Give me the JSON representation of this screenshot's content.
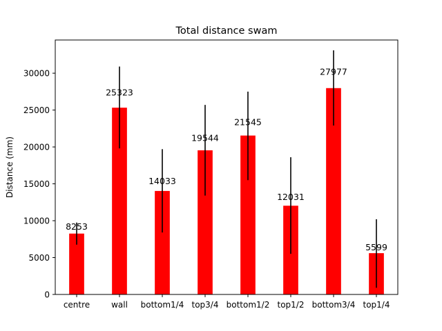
{
  "chart_data": {
    "type": "bar",
    "title": "Total distance swam",
    "xlabel": "",
    "ylabel": "Distance (mm)",
    "categories": [
      "centre",
      "wall",
      "bottom1/4",
      "top3/4",
      "bottom1/2",
      "top1/2",
      "bottom3/4",
      "top1/4"
    ],
    "values": [
      8253,
      25323,
      14033,
      19544,
      21545,
      12031,
      27977,
      5599
    ],
    "data_labels": [
      "8253",
      "25323",
      "14033",
      "19544",
      "21545",
      "12031",
      "27977",
      "5599"
    ],
    "error_low": [
      6750,
      19800,
      8400,
      13400,
      15500,
      5500,
      22900,
      900
    ],
    "error_high": [
      9750,
      30900,
      19700,
      25700,
      27500,
      18600,
      33100,
      10200
    ],
    "ylim": [
      0,
      34500
    ],
    "yticks": [
      0,
      5000,
      10000,
      15000,
      20000,
      25000,
      30000
    ],
    "ytick_labels": [
      "0",
      "5000",
      "10000",
      "15000",
      "20000",
      "25000",
      "30000"
    ],
    "bar_color": "#ff0000",
    "error_color": "#000000",
    "grid": false,
    "legend": "none"
  }
}
